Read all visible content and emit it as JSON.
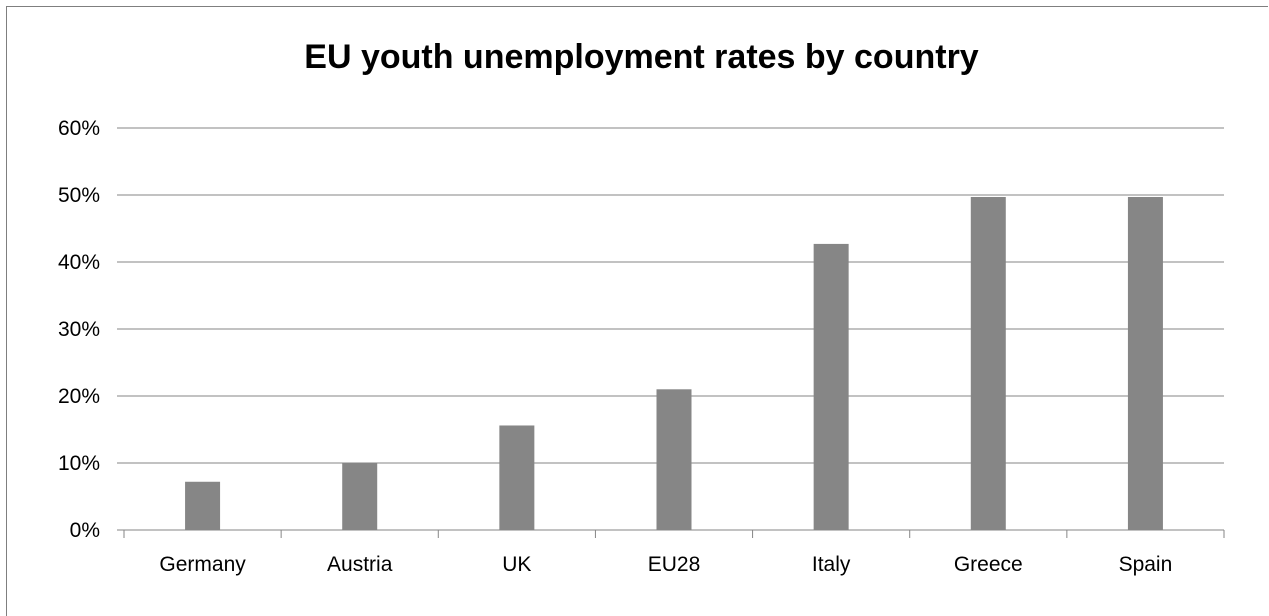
{
  "chart_data": {
    "type": "bar",
    "title": "EU youth unemployment rates by country",
    "categories": [
      "Germany",
      "Austria",
      "UK",
      "EU28",
      "Italy",
      "Greece",
      "Spain"
    ],
    "values": [
      7.2,
      10.0,
      15.6,
      21.0,
      42.7,
      49.7,
      49.7
    ],
    "yticks": [
      "0%",
      "10%",
      "20%",
      "30%",
      "40%",
      "50%",
      "60%"
    ],
    "ylim": [
      0,
      60
    ],
    "grid": true,
    "bar_color": "#868686",
    "grid_color": "#868686"
  }
}
